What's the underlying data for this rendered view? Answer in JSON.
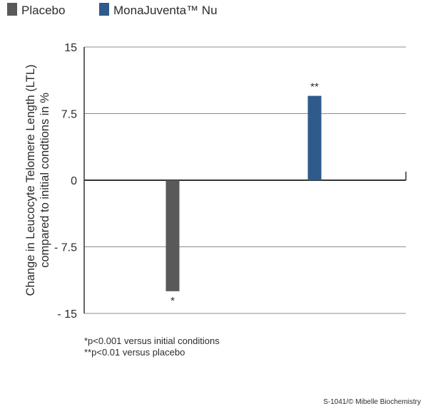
{
  "colors": {
    "placebo": "#595959",
    "monajuventa": "#2e5b8c",
    "grid": "#8c8c8c",
    "text": "#2b2b2b"
  },
  "legend": {
    "placement": "top-left",
    "items": [
      {
        "label": "Placebo",
        "color": "#595959"
      },
      {
        "label": "MonaJuventa™ Nu",
        "color": "#2e5b8c"
      }
    ]
  },
  "chart_data": {
    "type": "bar",
    "title": "",
    "xlabel": "",
    "ylabel_lines": [
      "Change in Leucocyte Telomere Length (LTL)",
      "compared to initial condtions in %"
    ],
    "ylim": [
      -15,
      15
    ],
    "y_ticks": [
      {
        "value": 15,
        "label": "15"
      },
      {
        "value": 7.5,
        "label": "7.5"
      },
      {
        "value": 0,
        "label": "0"
      },
      {
        "value": -7.5,
        "label": "- 7.5"
      },
      {
        "value": -15,
        "label": "- 15"
      }
    ],
    "grid": true,
    "series": [
      {
        "name": "Placebo",
        "value": -12.5,
        "significance": "*"
      },
      {
        "name": "MonaJuventa™ Nu",
        "value": 9.5,
        "significance": "**"
      }
    ]
  },
  "footnotes": [
    "*p<0.001 versus initial conditions",
    "**p<0.01 versus placebo"
  ],
  "credit": "S-1041/© Mibelle Biochemistry"
}
